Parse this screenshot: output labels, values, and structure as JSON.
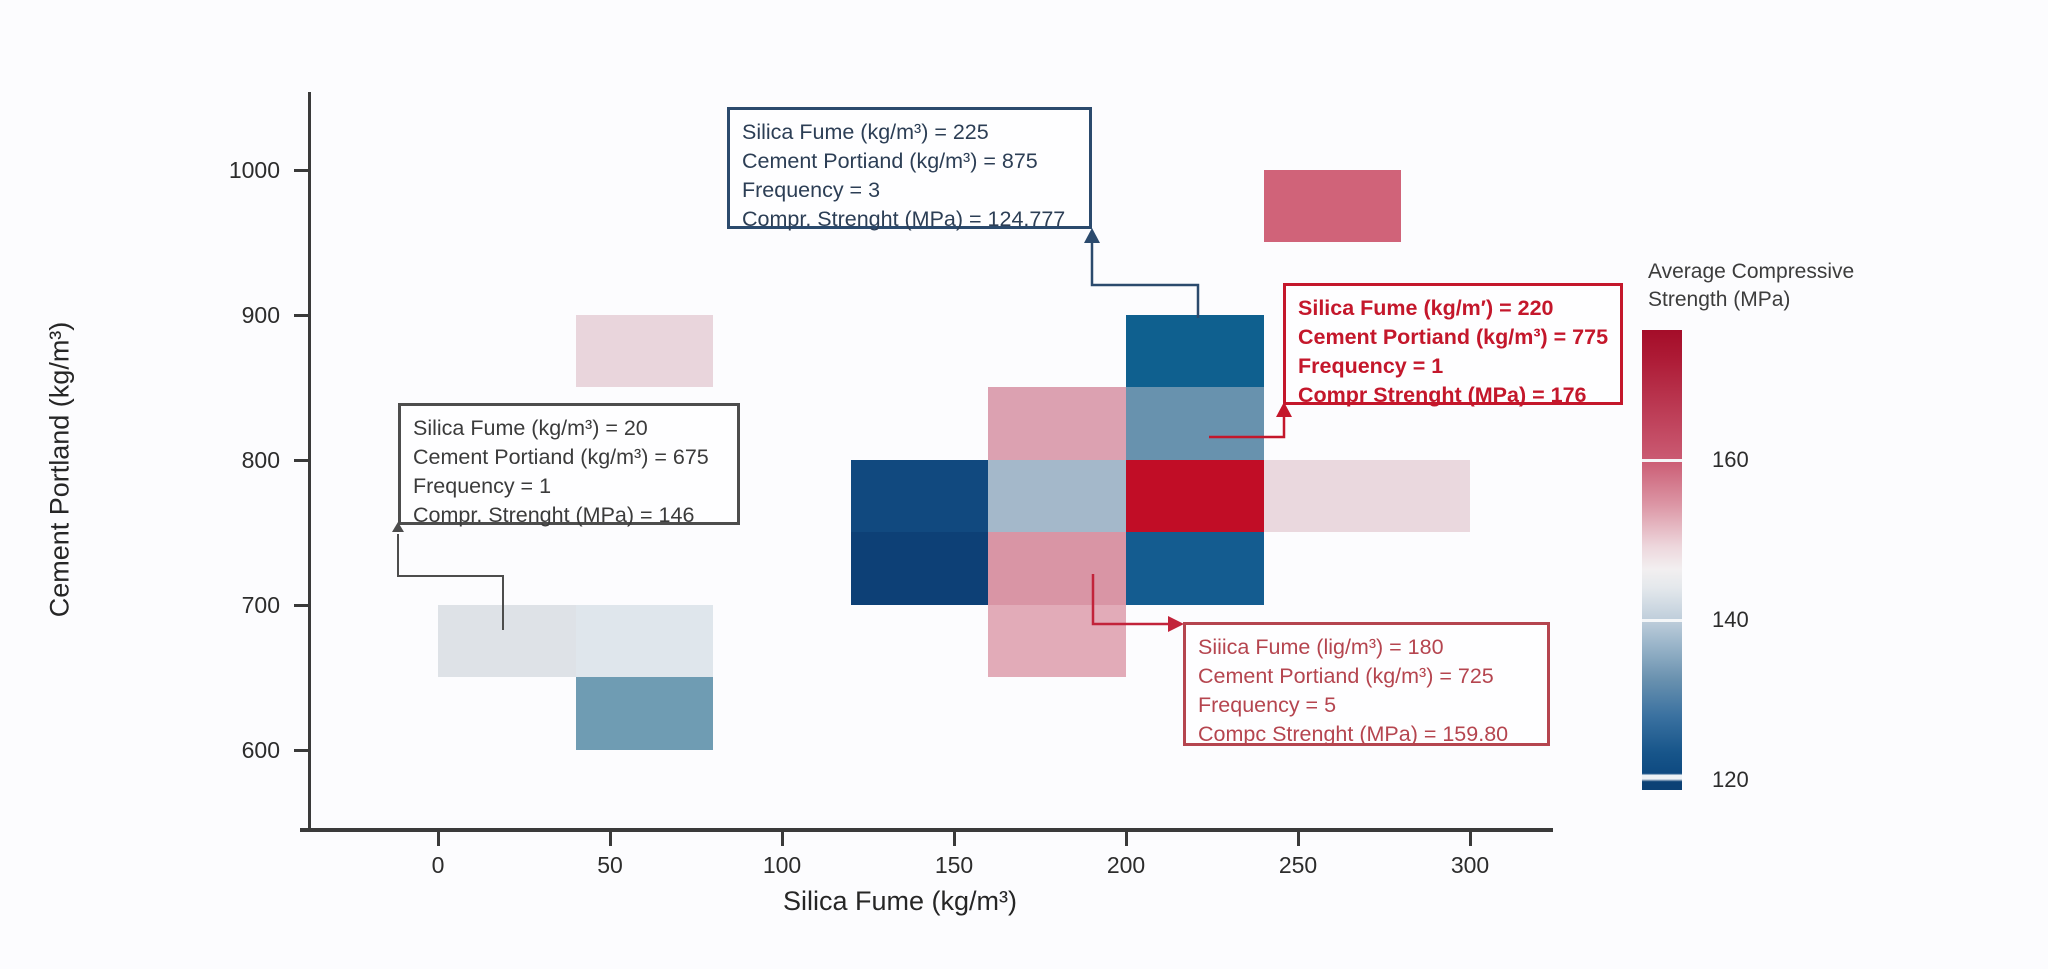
{
  "chart_data": {
    "type": "heatmap",
    "title": "",
    "xlabel": "Silica Fume (kg/m³)",
    "ylabel": "Cement Portland (kg/m³)",
    "x_ticks": [
      0,
      50,
      100,
      150,
      200,
      250,
      300
    ],
    "y_ticks": [
      1000,
      900,
      800,
      700,
      600
    ],
    "grid": false,
    "cells": [
      {
        "silica_min": 240,
        "silica_max": 280,
        "cement_min": 950,
        "cement_max": 1000,
        "color": "#d06379",
        "strength_mpa": 162,
        "source": "estimated"
      },
      {
        "silica_min": 40,
        "silica_max": 80,
        "cement_min": 850,
        "cement_max": 900,
        "color": "#e9d5dc",
        "strength_mpa": 150,
        "source": "estimated"
      },
      {
        "silica_min": 200,
        "silica_max": 240,
        "cement_min": 850,
        "cement_max": 900,
        "color": "#0f608f",
        "strength_mpa": 124.777,
        "frequency": 3,
        "source": "annotation"
      },
      {
        "silica_min": 160,
        "silica_max": 200,
        "cement_min": 800,
        "cement_max": 850,
        "color": "#dca1b1",
        "strength_mpa": 157,
        "source": "estimated"
      },
      {
        "silica_min": 200,
        "silica_max": 240,
        "cement_min": 800,
        "cement_max": 850,
        "color": "#6892ae",
        "strength_mpa": 134,
        "source": "estimated"
      },
      {
        "silica_min": 120,
        "silica_max": 160,
        "cement_min": 750,
        "cement_max": 800,
        "color": "#11497f",
        "strength_mpa": 122,
        "source": "estimated"
      },
      {
        "silica_min": 160,
        "silica_max": 200,
        "cement_min": 750,
        "cement_max": 800,
        "color": "#a4b8ca",
        "strength_mpa": 138,
        "source": "estimated"
      },
      {
        "silica_min": 200,
        "silica_max": 240,
        "cement_min": 750,
        "cement_max": 800,
        "color": "#c10d26",
        "strength_mpa": 176,
        "frequency": 1,
        "source": "annotation"
      },
      {
        "silica_min": 240,
        "silica_max": 300,
        "cement_min": 750,
        "cement_max": 800,
        "color": "#ead8de",
        "strength_mpa": 150,
        "source": "estimated"
      },
      {
        "silica_min": 120,
        "silica_max": 160,
        "cement_min": 700,
        "cement_max": 750,
        "color": "#0d4076",
        "strength_mpa": 120,
        "source": "estimated"
      },
      {
        "silica_min": 160,
        "silica_max": 200,
        "cement_min": 700,
        "cement_max": 750,
        "color": "#d995a5",
        "strength_mpa": 159.8,
        "frequency": 5,
        "source": "annotation"
      },
      {
        "silica_min": 200,
        "silica_max": 240,
        "cement_min": 700,
        "cement_max": 750,
        "color": "#145c90",
        "strength_mpa": 125,
        "source": "estimated"
      },
      {
        "silica_min": 0,
        "silica_max": 40,
        "cement_min": 650,
        "cement_max": 700,
        "color": "#dee2e7",
        "strength_mpa": 146,
        "frequency": 1,
        "source": "annotation"
      },
      {
        "silica_min": 40,
        "silica_max": 80,
        "cement_min": 650,
        "cement_max": 700,
        "color": "#dfe6ec",
        "strength_mpa": 144,
        "source": "estimated"
      },
      {
        "silica_min": 160,
        "silica_max": 200,
        "cement_min": 650,
        "cement_max": 700,
        "color": "#e2abb8",
        "strength_mpa": 154,
        "source": "estimated"
      },
      {
        "silica_min": 40,
        "silica_max": 80,
        "cement_min": 600,
        "cement_max": 650,
        "color": "#6f9cb3",
        "strength_mpa": 135,
        "source": "estimated"
      }
    ],
    "colorbar": {
      "title_line1": "Average Compressive",
      "title_line2": "Strength (MPa)",
      "ticks": [
        160,
        140,
        120
      ],
      "value_range": [
        119,
        176
      ],
      "gradient": [
        {
          "pos": 0,
          "color": "#a40d29"
        },
        {
          "pos": 6,
          "color": "#ad1a35"
        },
        {
          "pos": 28,
          "color": "#ca5a72"
        },
        {
          "pos": 38,
          "color": "#dc96a5"
        },
        {
          "pos": 47,
          "color": "#edd6dc"
        },
        {
          "pos": 52,
          "color": "#f2eff0"
        },
        {
          "pos": 56,
          "color": "#e4e8ec"
        },
        {
          "pos": 63,
          "color": "#bfcedb"
        },
        {
          "pos": 68,
          "color": "#9db7cb"
        },
        {
          "pos": 76,
          "color": "#6991af"
        },
        {
          "pos": 84,
          "color": "#3a71a0"
        },
        {
          "pos": 92,
          "color": "#17558a"
        },
        {
          "pos": 96.4,
          "color": "#0e4a81"
        },
        {
          "pos": 96.8,
          "color": "#eef2f6"
        },
        {
          "pos": 97.6,
          "color": "#eef2f6"
        },
        {
          "pos": 98.2,
          "color": "#0c4175"
        },
        {
          "pos": 100,
          "color": "#0c4175"
        }
      ]
    },
    "annotations": [
      {
        "id": "blue",
        "lines": [
          "Silica Fume (kg/m³) = 225",
          "Cement Portiand (kg/m³) = 875",
          "Frequency = 3",
          "Compr. Strenght (MPa) = 124.777"
        ],
        "text_color": "#2c3e55",
        "border_color": "#2b4a6d"
      },
      {
        "id": "gray",
        "lines": [
          "Silica Fume (kg/m³) = 20",
          "Cement Portiand (kg/m³) = 675",
          "Frequency = 1",
          "Compr. Strenght (MPa) = 146"
        ],
        "text_color": "#3b3b3b",
        "border_color": "#4d4d4d"
      },
      {
        "id": "red-right",
        "lines": [
          "Silica Fume (kg/m′) = 220",
          "Cement Portiand (kg/m³) = 775",
          "Frequency = 1",
          "Compr Strenght (MPa) = 176"
        ],
        "text_color": "#c4172b",
        "border_color": "#c4172b"
      },
      {
        "id": "red-bottom",
        "lines": [
          "Siiica Fume (lig/m³) = 180",
          "Cement Portiand (kg/m³) = 725",
          "Frequency = 5",
          "Compc Strenght (MPa) = 159.80"
        ],
        "text_color": "#b5454f",
        "border_color": "#b5454f"
      }
    ]
  }
}
